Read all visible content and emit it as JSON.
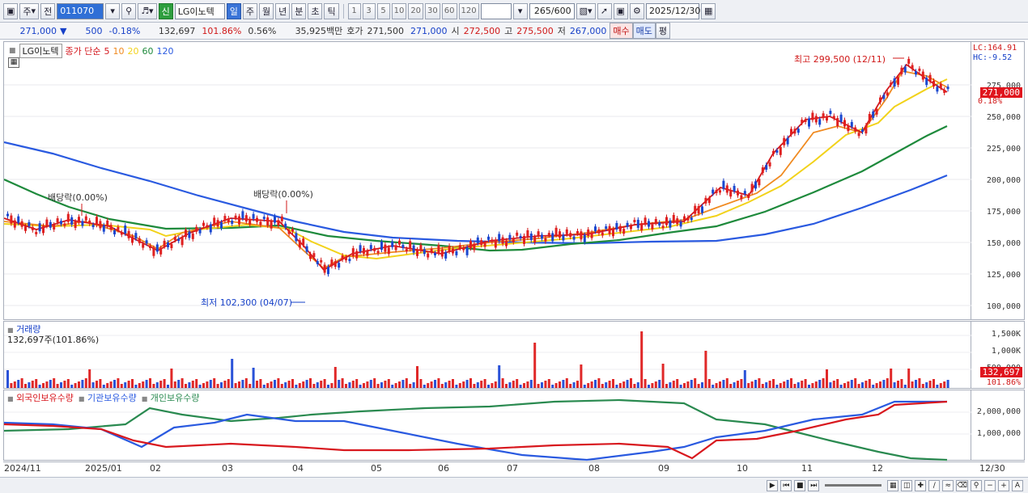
{
  "toolbar": {
    "view_label": "주",
    "prev_label": "전",
    "stock_code": "011070",
    "credit_label": "신",
    "stock_name": "LG이노텍",
    "periods": [
      "일",
      "주",
      "월",
      "년",
      "분",
      "초",
      "틱"
    ],
    "active_period": "일",
    "intervals": [
      "1",
      "3",
      "5",
      "10",
      "20",
      "30",
      "60",
      "120"
    ],
    "count_value": "265",
    "count_total": "/600",
    "date_value": "2025/12/30"
  },
  "quote": {
    "price": "271,000",
    "change_arrow": "▼",
    "change": "500",
    "change_pct": "-0.18%",
    "volume": "132,697",
    "volume_ratio": "101.86%",
    "turnover": "0.56%",
    "amount": "35,925백만",
    "hoga_label": "호가",
    "hoga_ask": "271,500",
    "hoga_bid": "271,000",
    "open_label": "시",
    "open": "272,500",
    "high_label": "고",
    "high": "275,500",
    "low_label": "저",
    "low": "267,000",
    "buy_label": "매수",
    "sell_label": "매도",
    "eval_label": "평"
  },
  "price_panel": {
    "legend_name": "LG이노텍",
    "legend_prefix": "종가 단순",
    "ma_labels": [
      "5",
      "10",
      "20",
      "60",
      "120"
    ],
    "ma_colors": [
      "#d4181e",
      "#f08a20",
      "#f2d21a",
      "#1e8a3c",
      "#2a5ae0"
    ],
    "annot_high": "최고 299,500 (12/11)",
    "annot_low": "최저 102,300 (04/07)",
    "annot_div1": "배당락(0.00%)",
    "annot_div2": "배당락(0.00%)",
    "lc": "LC:164.91",
    "hc": "HC:-9.52",
    "y_ticks": [
      "275,000",
      "250,000",
      "225,000",
      "200,000",
      "175,000",
      "150,000",
      "125,000",
      "100,000"
    ],
    "last_price": "271,000",
    "last_pct": "0.18%"
  },
  "volume_panel": {
    "title": "거래량",
    "subtitle": "132,697주(101.86%)",
    "y_ticks": [
      "1,500K",
      "1,000K",
      "500,000"
    ],
    "last_value": "132,697",
    "last_pct": "101.86%"
  },
  "holding_panel": {
    "series": [
      "외국인보유수량",
      "기관보유수량",
      "개인보유수량"
    ],
    "colors": [
      "#d8181e",
      "#2a5ae0",
      "#2a8a50"
    ],
    "y_ticks": [
      "2,000,000",
      "1,000,000"
    ]
  },
  "x_axis": {
    "labels": [
      "2024/11",
      "2025/01",
      "02",
      "03",
      "04",
      "05",
      "06",
      "07",
      "08",
      "09",
      "10",
      "11",
      "12",
      "12/30"
    ]
  }
}
